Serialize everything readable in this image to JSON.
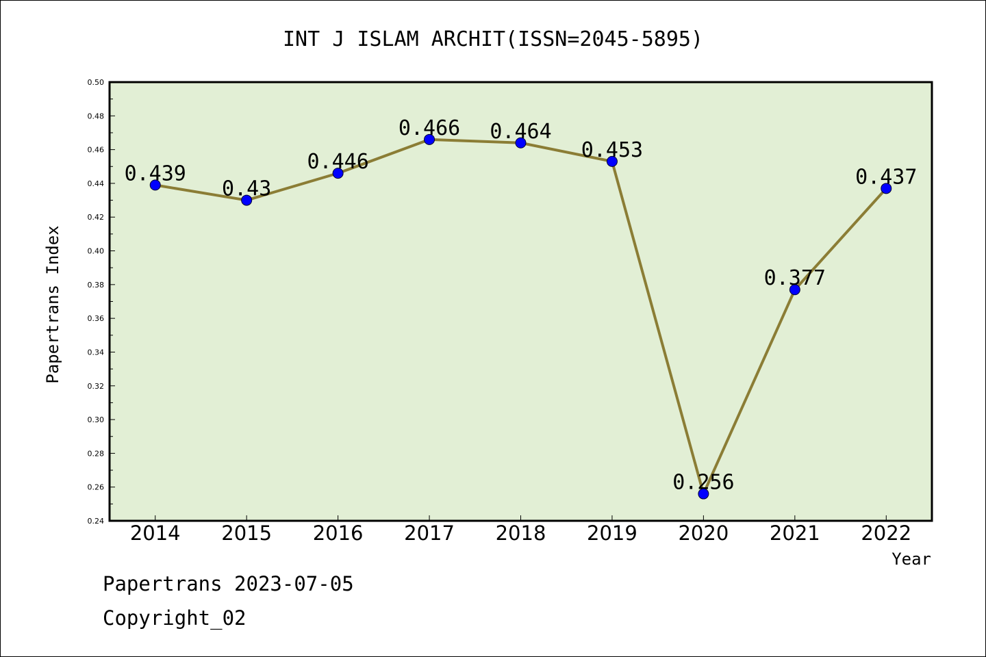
{
  "chart_data": {
    "type": "line",
    "title": "INT J ISLAM ARCHIT(ISSN=2045-5895)",
    "xlabel": "Year",
    "ylabel": "Papertrans Index",
    "categories": [
      "2014",
      "2015",
      "2016",
      "2017",
      "2018",
      "2019",
      "2020",
      "2021",
      "2022"
    ],
    "series": [
      {
        "values": [
          0.439,
          0.43,
          0.446,
          0.466,
          0.464,
          0.453,
          0.256,
          0.377,
          0.437
        ],
        "labels": [
          "0.439",
          "0.43",
          "0.446",
          "0.466",
          "0.464",
          "0.453",
          "0.256",
          "0.377",
          "0.437"
        ]
      }
    ],
    "ylim": [
      0.24,
      0.5
    ],
    "yticks": [
      "0.24",
      "0.26",
      "0.28",
      "0.30",
      "0.32",
      "0.34",
      "0.36",
      "0.38",
      "0.40",
      "0.42",
      "0.44",
      "0.46",
      "0.48",
      "0.50"
    ],
    "grid": false,
    "colors": {
      "plot_bg": "#e2efd5",
      "line": "#8b7d35",
      "marker": "#0000ff"
    }
  },
  "footer": {
    "line1": "Papertrans 2023-07-05",
    "line2": "Copyright_02"
  }
}
